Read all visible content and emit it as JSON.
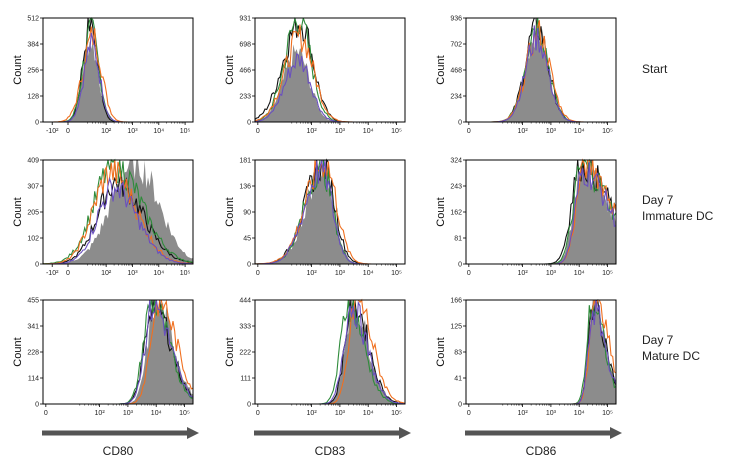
{
  "row_labels": [
    {
      "lines": [
        "Start"
      ]
    },
    {
      "lines": [
        "Day 7",
        "Immature DC"
      ]
    },
    {
      "lines": [
        "Day 7",
        "Mature DC"
      ]
    }
  ],
  "column_labels": [
    "CD80",
    "CD83",
    "CD86"
  ],
  "colors": {
    "filled": "#8c8c8c",
    "black": "#111111",
    "green": "#2e8b3a",
    "orange": "#f07020",
    "purple": "#6a4fc0",
    "arrow": "#555555"
  },
  "chart_data": [
    {
      "type": "histogram",
      "row": 0,
      "col": 0,
      "ylabel": "Count",
      "xlabel": "CD80",
      "ylim": [
        0,
        512
      ],
      "yticks": [
        "0",
        "128",
        "256",
        "384",
        "512"
      ],
      "xticks": [
        "-10²",
        "0",
        "10²",
        "10³",
        "10⁴",
        "10⁵"
      ],
      "x_scale": "biexponential",
      "series": [
        {
          "name": "",
          "color": "#8c8c8c",
          "fill": true,
          "peak_log": 1.4,
          "width": 0.3,
          "peak_count": 400,
          "skew": 0
        },
        {
          "name": "",
          "color": "#111111",
          "fill": false,
          "peak_log": 1.4,
          "width": 0.28,
          "peak_count": 495,
          "skew": 0
        },
        {
          "name": "",
          "color": "#2e8b3a",
          "fill": false,
          "peak_log": 1.42,
          "width": 0.3,
          "peak_count": 450,
          "skew": 0
        },
        {
          "name": "",
          "color": "#f07020",
          "fill": false,
          "peak_log": 1.5,
          "width": 0.35,
          "peak_count": 420,
          "skew": 0.1
        },
        {
          "name": "",
          "color": "#6a4fc0",
          "fill": false,
          "peak_log": 1.45,
          "width": 0.3,
          "peak_count": 380,
          "skew": 0
        }
      ]
    },
    {
      "type": "histogram",
      "row": 0,
      "col": 1,
      "ylabel": "Count",
      "xlabel": "CD83",
      "ylim": [
        0,
        931
      ],
      "yticks": [
        "0",
        "233",
        "466",
        "698",
        "931"
      ],
      "xticks": [
        "0",
        "10²",
        "10³",
        "10⁴",
        "10⁵"
      ],
      "x_scale": "biexponential",
      "series": [
        {
          "name": "",
          "color": "#8c8c8c",
          "fill": true,
          "peak_log": 1.5,
          "width": 0.45,
          "peak_count": 620,
          "skew": 0.1
        },
        {
          "name": "",
          "color": "#111111",
          "fill": false,
          "peak_log": 1.6,
          "width": 0.5,
          "peak_count": 900,
          "skew": 0.2
        },
        {
          "name": "",
          "color": "#2e8b3a",
          "fill": false,
          "peak_log": 1.55,
          "width": 0.45,
          "peak_count": 920,
          "skew": 0.1
        },
        {
          "name": "",
          "color": "#f07020",
          "fill": false,
          "peak_log": 1.6,
          "width": 0.5,
          "peak_count": 760,
          "skew": 0.1
        },
        {
          "name": "",
          "color": "#6a4fc0",
          "fill": false,
          "peak_log": 1.55,
          "width": 0.45,
          "peak_count": 560,
          "skew": 0.1
        }
      ]
    },
    {
      "type": "histogram",
      "row": 0,
      "col": 2,
      "ylabel": "Count",
      "xlabel": "CD86",
      "ylim": [
        0,
        936
      ],
      "yticks": [
        "0",
        "234",
        "468",
        "702",
        "936"
      ],
      "xticks": [
        "0",
        "10²",
        "10³",
        "10⁴",
        "10⁵"
      ],
      "x_scale": "biexponential",
      "series": [
        {
          "name": "",
          "color": "#8c8c8c",
          "fill": true,
          "peak_log": 2.5,
          "width": 0.4,
          "peak_count": 830,
          "skew": 0
        },
        {
          "name": "",
          "color": "#111111",
          "fill": false,
          "peak_log": 2.5,
          "width": 0.4,
          "peak_count": 870,
          "skew": 0
        },
        {
          "name": "",
          "color": "#2e8b3a",
          "fill": false,
          "peak_log": 2.5,
          "width": 0.4,
          "peak_count": 900,
          "skew": 0
        },
        {
          "name": "",
          "color": "#f07020",
          "fill": false,
          "peak_log": 2.55,
          "width": 0.42,
          "peak_count": 800,
          "skew": 0
        },
        {
          "name": "",
          "color": "#6a4fc0",
          "fill": false,
          "peak_log": 2.5,
          "width": 0.4,
          "peak_count": 760,
          "skew": 0
        }
      ]
    },
    {
      "type": "histogram",
      "row": 1,
      "col": 0,
      "ylabel": "Count",
      "xlabel": "CD80",
      "ylim": [
        0,
        409
      ],
      "yticks": [
        "0",
        "102",
        "205",
        "307",
        "409"
      ],
      "xticks": [
        "-10²",
        "0",
        "10²",
        "10³",
        "10⁴",
        "10⁵"
      ],
      "x_scale": "biexponential",
      "series": [
        {
          "name": "",
          "color": "#8c8c8c",
          "fill": true,
          "peak_log": 3.1,
          "width": 0.9,
          "peak_count": 400,
          "skew": 0
        },
        {
          "name": "",
          "color": "#111111",
          "fill": false,
          "peak_log": 2.4,
          "width": 0.9,
          "peak_count": 320,
          "skew": -0.2
        },
        {
          "name": "",
          "color": "#2e8b3a",
          "fill": false,
          "peak_log": 2.3,
          "width": 0.95,
          "peak_count": 390,
          "skew": -0.2
        },
        {
          "name": "",
          "color": "#f07020",
          "fill": false,
          "peak_log": 2.2,
          "width": 0.85,
          "peak_count": 360,
          "skew": -0.2
        },
        {
          "name": "",
          "color": "#6a4fc0",
          "fill": false,
          "peak_log": 2.3,
          "width": 0.8,
          "peak_count": 300,
          "skew": -0.2
        }
      ]
    },
    {
      "type": "histogram",
      "row": 1,
      "col": 1,
      "ylabel": "Count",
      "xlabel": "CD83",
      "ylim": [
        0,
        181
      ],
      "yticks": [
        "0",
        "45",
        "90",
        "136",
        "181"
      ],
      "xticks": [
        "0",
        "10²",
        "10³",
        "10⁴",
        "10⁵"
      ],
      "x_scale": "biexponential",
      "series": [
        {
          "name": "",
          "color": "#8c8c8c",
          "fill": true,
          "peak_log": 2.4,
          "width": 0.45,
          "peak_count": 170,
          "skew": 0.3
        },
        {
          "name": "",
          "color": "#111111",
          "fill": false,
          "peak_log": 2.4,
          "width": 0.48,
          "peak_count": 175,
          "skew": 0.3
        },
        {
          "name": "",
          "color": "#2e8b3a",
          "fill": false,
          "peak_log": 2.35,
          "width": 0.45,
          "peak_count": 170,
          "skew": 0.3
        },
        {
          "name": "",
          "color": "#f07020",
          "fill": false,
          "peak_log": 2.45,
          "width": 0.5,
          "peak_count": 178,
          "skew": 0.3
        },
        {
          "name": "",
          "color": "#6a4fc0",
          "fill": false,
          "peak_log": 2.35,
          "width": 0.45,
          "peak_count": 165,
          "skew": 0.3
        }
      ]
    },
    {
      "type": "histogram",
      "row": 1,
      "col": 2,
      "ylabel": "Count",
      "xlabel": "CD86",
      "ylim": [
        0,
        324
      ],
      "yticks": [
        "0",
        "81",
        "162",
        "243",
        "324"
      ],
      "xticks": [
        "0",
        "10²",
        "10³",
        "10⁴",
        "10⁵"
      ],
      "x_scale": "biexponential",
      "series": [
        {
          "name": "",
          "color": "#8c8c8c",
          "fill": true,
          "peak_log": 4.1,
          "width": 0.75,
          "peak_count": 300,
          "skew": -0.6
        },
        {
          "name": "",
          "color": "#111111",
          "fill": false,
          "peak_log": 4.05,
          "width": 0.8,
          "peak_count": 312,
          "skew": -0.6
        },
        {
          "name": "",
          "color": "#2e8b3a",
          "fill": false,
          "peak_log": 4.1,
          "width": 0.75,
          "peak_count": 305,
          "skew": -0.6
        },
        {
          "name": "",
          "color": "#f07020",
          "fill": false,
          "peak_log": 4.2,
          "width": 0.72,
          "peak_count": 315,
          "skew": -0.6
        },
        {
          "name": "",
          "color": "#6a4fc0",
          "fill": false,
          "peak_log": 4.15,
          "width": 0.7,
          "peak_count": 290,
          "skew": -0.6
        }
      ]
    },
    {
      "type": "histogram",
      "row": 2,
      "col": 0,
      "ylabel": "Count",
      "xlabel": "CD80",
      "ylim": [
        0,
        455
      ],
      "yticks": [
        "0",
        "114",
        "228",
        "341",
        "455"
      ],
      "xticks": [
        "0",
        "10²",
        "10³",
        "10⁴",
        "10⁵"
      ],
      "x_scale": "biexponential",
      "series": [
        {
          "name": "",
          "color": "#8c8c8c",
          "fill": true,
          "peak_log": 4.0,
          "width": 0.5,
          "peak_count": 440,
          "skew": -0.4
        },
        {
          "name": "",
          "color": "#111111",
          "fill": false,
          "peak_log": 3.9,
          "width": 0.5,
          "peak_count": 450,
          "skew": -0.4
        },
        {
          "name": "",
          "color": "#2e8b3a",
          "fill": false,
          "peak_log": 3.85,
          "width": 0.5,
          "peak_count": 445,
          "skew": -0.4
        },
        {
          "name": "",
          "color": "#f07020",
          "fill": false,
          "peak_log": 4.1,
          "width": 0.5,
          "peak_count": 455,
          "skew": -0.4
        },
        {
          "name": "",
          "color": "#6a4fc0",
          "fill": false,
          "peak_log": 3.9,
          "width": 0.5,
          "peak_count": 430,
          "skew": -0.4
        }
      ]
    },
    {
      "type": "histogram",
      "row": 2,
      "col": 1,
      "ylabel": "Count",
      "xlabel": "CD83",
      "ylim": [
        0,
        444
      ],
      "yticks": [
        "0",
        "111",
        "222",
        "333",
        "444"
      ],
      "xticks": [
        "0",
        "10²",
        "10³",
        "10⁴",
        "10⁵"
      ],
      "x_scale": "biexponential",
      "series": [
        {
          "name": "",
          "color": "#8c8c8c",
          "fill": true,
          "peak_log": 3.45,
          "width": 0.45,
          "peak_count": 430,
          "skew": -0.4
        },
        {
          "name": "",
          "color": "#111111",
          "fill": false,
          "peak_log": 3.45,
          "width": 0.45,
          "peak_count": 440,
          "skew": -0.4
        },
        {
          "name": "",
          "color": "#2e8b3a",
          "fill": false,
          "peak_log": 3.3,
          "width": 0.45,
          "peak_count": 430,
          "skew": -0.4
        },
        {
          "name": "",
          "color": "#f07020",
          "fill": false,
          "peak_log": 3.6,
          "width": 0.45,
          "peak_count": 444,
          "skew": -0.4
        },
        {
          "name": "",
          "color": "#6a4fc0",
          "fill": false,
          "peak_log": 3.4,
          "width": 0.45,
          "peak_count": 420,
          "skew": -0.4
        }
      ]
    },
    {
      "type": "histogram",
      "row": 2,
      "col": 2,
      "ylabel": "Count",
      "xlabel": "CD86",
      "ylim": [
        0,
        166
      ],
      "yticks": [
        "0",
        "41",
        "83",
        "125",
        "166"
      ],
      "xticks": [
        "0",
        "10²",
        "10³",
        "10⁴",
        "10⁵"
      ],
      "x_scale": "biexponential",
      "series": [
        {
          "name": "",
          "color": "#8c8c8c",
          "fill": true,
          "peak_log": 4.5,
          "width": 0.35,
          "peak_count": 160,
          "skew": -0.5
        },
        {
          "name": "",
          "color": "#111111",
          "fill": false,
          "peak_log": 4.5,
          "width": 0.35,
          "peak_count": 162,
          "skew": -0.5
        },
        {
          "name": "",
          "color": "#2e8b3a",
          "fill": false,
          "peak_log": 4.45,
          "width": 0.35,
          "peak_count": 158,
          "skew": -0.5
        },
        {
          "name": "",
          "color": "#f07020",
          "fill": false,
          "peak_log": 4.55,
          "width": 0.38,
          "peak_count": 166,
          "skew": -0.5
        },
        {
          "name": "",
          "color": "#6a4fc0",
          "fill": false,
          "peak_log": 4.5,
          "width": 0.35,
          "peak_count": 150,
          "skew": -0.5
        }
      ]
    }
  ]
}
